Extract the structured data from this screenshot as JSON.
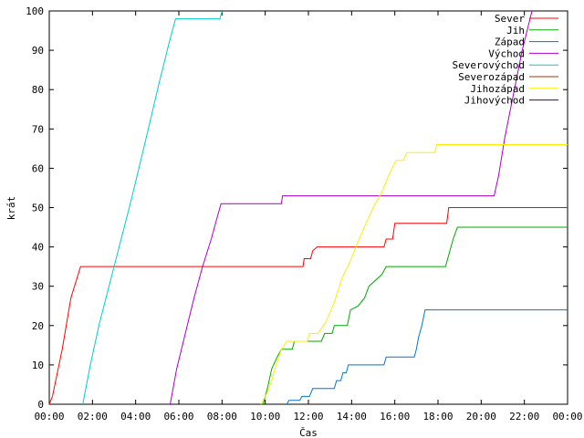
{
  "chart_data": {
    "type": "line",
    "title": "",
    "xlabel": "Čas",
    "ylabel": "krát",
    "xlim": [
      0,
      24
    ],
    "ylim": [
      0,
      100
    ],
    "x_ticks": [
      "00:00",
      "02:00",
      "04:00",
      "06:00",
      "08:00",
      "10:00",
      "12:00",
      "14:00",
      "16:00",
      "18:00",
      "20:00",
      "22:00",
      "00:00"
    ],
    "y_ticks": [
      "0",
      "10",
      "20",
      "30",
      "40",
      "50",
      "60",
      "70",
      "80",
      "90",
      "100"
    ],
    "grid": false,
    "legend_position": "top-right",
    "series": [
      {
        "name": "Sever",
        "color": "#ff0000",
        "points": [
          [
            0,
            0
          ],
          [
            0.15,
            2
          ],
          [
            0.6,
            14
          ],
          [
            1.0,
            27
          ],
          [
            1.45,
            35
          ],
          [
            11.75,
            35
          ],
          [
            11.8,
            37
          ],
          [
            12.1,
            37
          ],
          [
            12.2,
            39
          ],
          [
            12.4,
            40
          ],
          [
            15.5,
            40
          ],
          [
            15.6,
            42
          ],
          [
            15.9,
            42
          ],
          [
            16.0,
            46
          ],
          [
            18.4,
            46
          ],
          [
            18.5,
            50
          ],
          [
            24,
            50
          ]
        ]
      },
      {
        "name": "Jih",
        "color": "#00aa00",
        "points": [
          [
            9.9,
            0
          ],
          [
            10.1,
            4
          ],
          [
            10.3,
            9
          ],
          [
            10.55,
            12
          ],
          [
            10.75,
            14
          ],
          [
            11.25,
            14
          ],
          [
            11.35,
            16
          ],
          [
            12.6,
            16
          ],
          [
            12.75,
            18
          ],
          [
            13.1,
            18
          ],
          [
            13.2,
            20
          ],
          [
            13.8,
            20
          ],
          [
            13.95,
            24
          ],
          [
            14.3,
            25
          ],
          [
            14.6,
            27
          ],
          [
            14.8,
            30
          ],
          [
            15.4,
            33
          ],
          [
            15.6,
            35
          ],
          [
            18.35,
            35
          ],
          [
            18.5,
            38
          ],
          [
            18.7,
            42
          ],
          [
            18.9,
            45
          ],
          [
            24,
            45
          ]
        ]
      },
      {
        "name": "Západ",
        "color": "#0077cc",
        "points": [
          [
            11.0,
            0
          ],
          [
            11.1,
            1
          ],
          [
            11.6,
            1
          ],
          [
            11.7,
            2
          ],
          [
            12.05,
            2
          ],
          [
            12.2,
            4
          ],
          [
            13.2,
            4
          ],
          [
            13.3,
            6
          ],
          [
            13.5,
            6
          ],
          [
            13.6,
            8
          ],
          [
            13.75,
            8
          ],
          [
            13.85,
            10
          ],
          [
            15.5,
            10
          ],
          [
            15.6,
            12
          ],
          [
            16.9,
            12
          ],
          [
            17.0,
            14
          ],
          [
            17.1,
            17
          ],
          [
            17.25,
            20
          ],
          [
            17.4,
            24
          ],
          [
            24,
            24
          ]
        ]
      },
      {
        "name": "Východ",
        "color": "#aa00cc",
        "points": [
          [
            5.6,
            0
          ],
          [
            5.9,
            9
          ],
          [
            6.3,
            18
          ],
          [
            6.7,
            27
          ],
          [
            7.1,
            35
          ],
          [
            7.5,
            42
          ],
          [
            7.75,
            47
          ],
          [
            7.95,
            51
          ],
          [
            10.75,
            51
          ],
          [
            10.8,
            53
          ],
          [
            20.6,
            53
          ],
          [
            20.8,
            58
          ],
          [
            21.1,
            68
          ],
          [
            21.5,
            79
          ],
          [
            21.9,
            90
          ],
          [
            22.35,
            100
          ]
        ]
      },
      {
        "name": "Severovýchod",
        "color": "#00cccc",
        "points": [
          [
            1.55,
            0
          ],
          [
            1.9,
            10
          ],
          [
            2.3,
            20
          ],
          [
            3.0,
            35
          ],
          [
            3.8,
            52
          ],
          [
            4.5,
            68
          ],
          [
            5.1,
            82
          ],
          [
            5.6,
            93
          ],
          [
            5.85,
            98
          ],
          [
            7.9,
            98
          ],
          [
            8.0,
            100
          ]
        ]
      },
      {
        "name": "Severozápad",
        "color": "#aa3300",
        "points": []
      },
      {
        "name": "Jihozápad",
        "color": "#ffee00",
        "points": [
          [
            9.8,
            0
          ],
          [
            10.1,
            3
          ],
          [
            10.3,
            6
          ],
          [
            10.5,
            10
          ],
          [
            10.75,
            14
          ],
          [
            11.0,
            16
          ],
          [
            11.95,
            16
          ],
          [
            12.05,
            18
          ],
          [
            12.45,
            18
          ],
          [
            12.55,
            19
          ],
          [
            12.7,
            20
          ],
          [
            12.9,
            22
          ],
          [
            13.2,
            26
          ],
          [
            13.55,
            32
          ],
          [
            13.9,
            36
          ],
          [
            14.2,
            40
          ],
          [
            14.5,
            44
          ],
          [
            14.75,
            47
          ],
          [
            15.0,
            50
          ],
          [
            15.4,
            54
          ],
          [
            15.7,
            58
          ],
          [
            16.05,
            62
          ],
          [
            16.4,
            62
          ],
          [
            16.55,
            64
          ],
          [
            17.85,
            64
          ],
          [
            17.95,
            66
          ],
          [
            24,
            66
          ]
        ]
      },
      {
        "name": "Jihovýchod",
        "color": "#440066",
        "points": []
      }
    ]
  }
}
